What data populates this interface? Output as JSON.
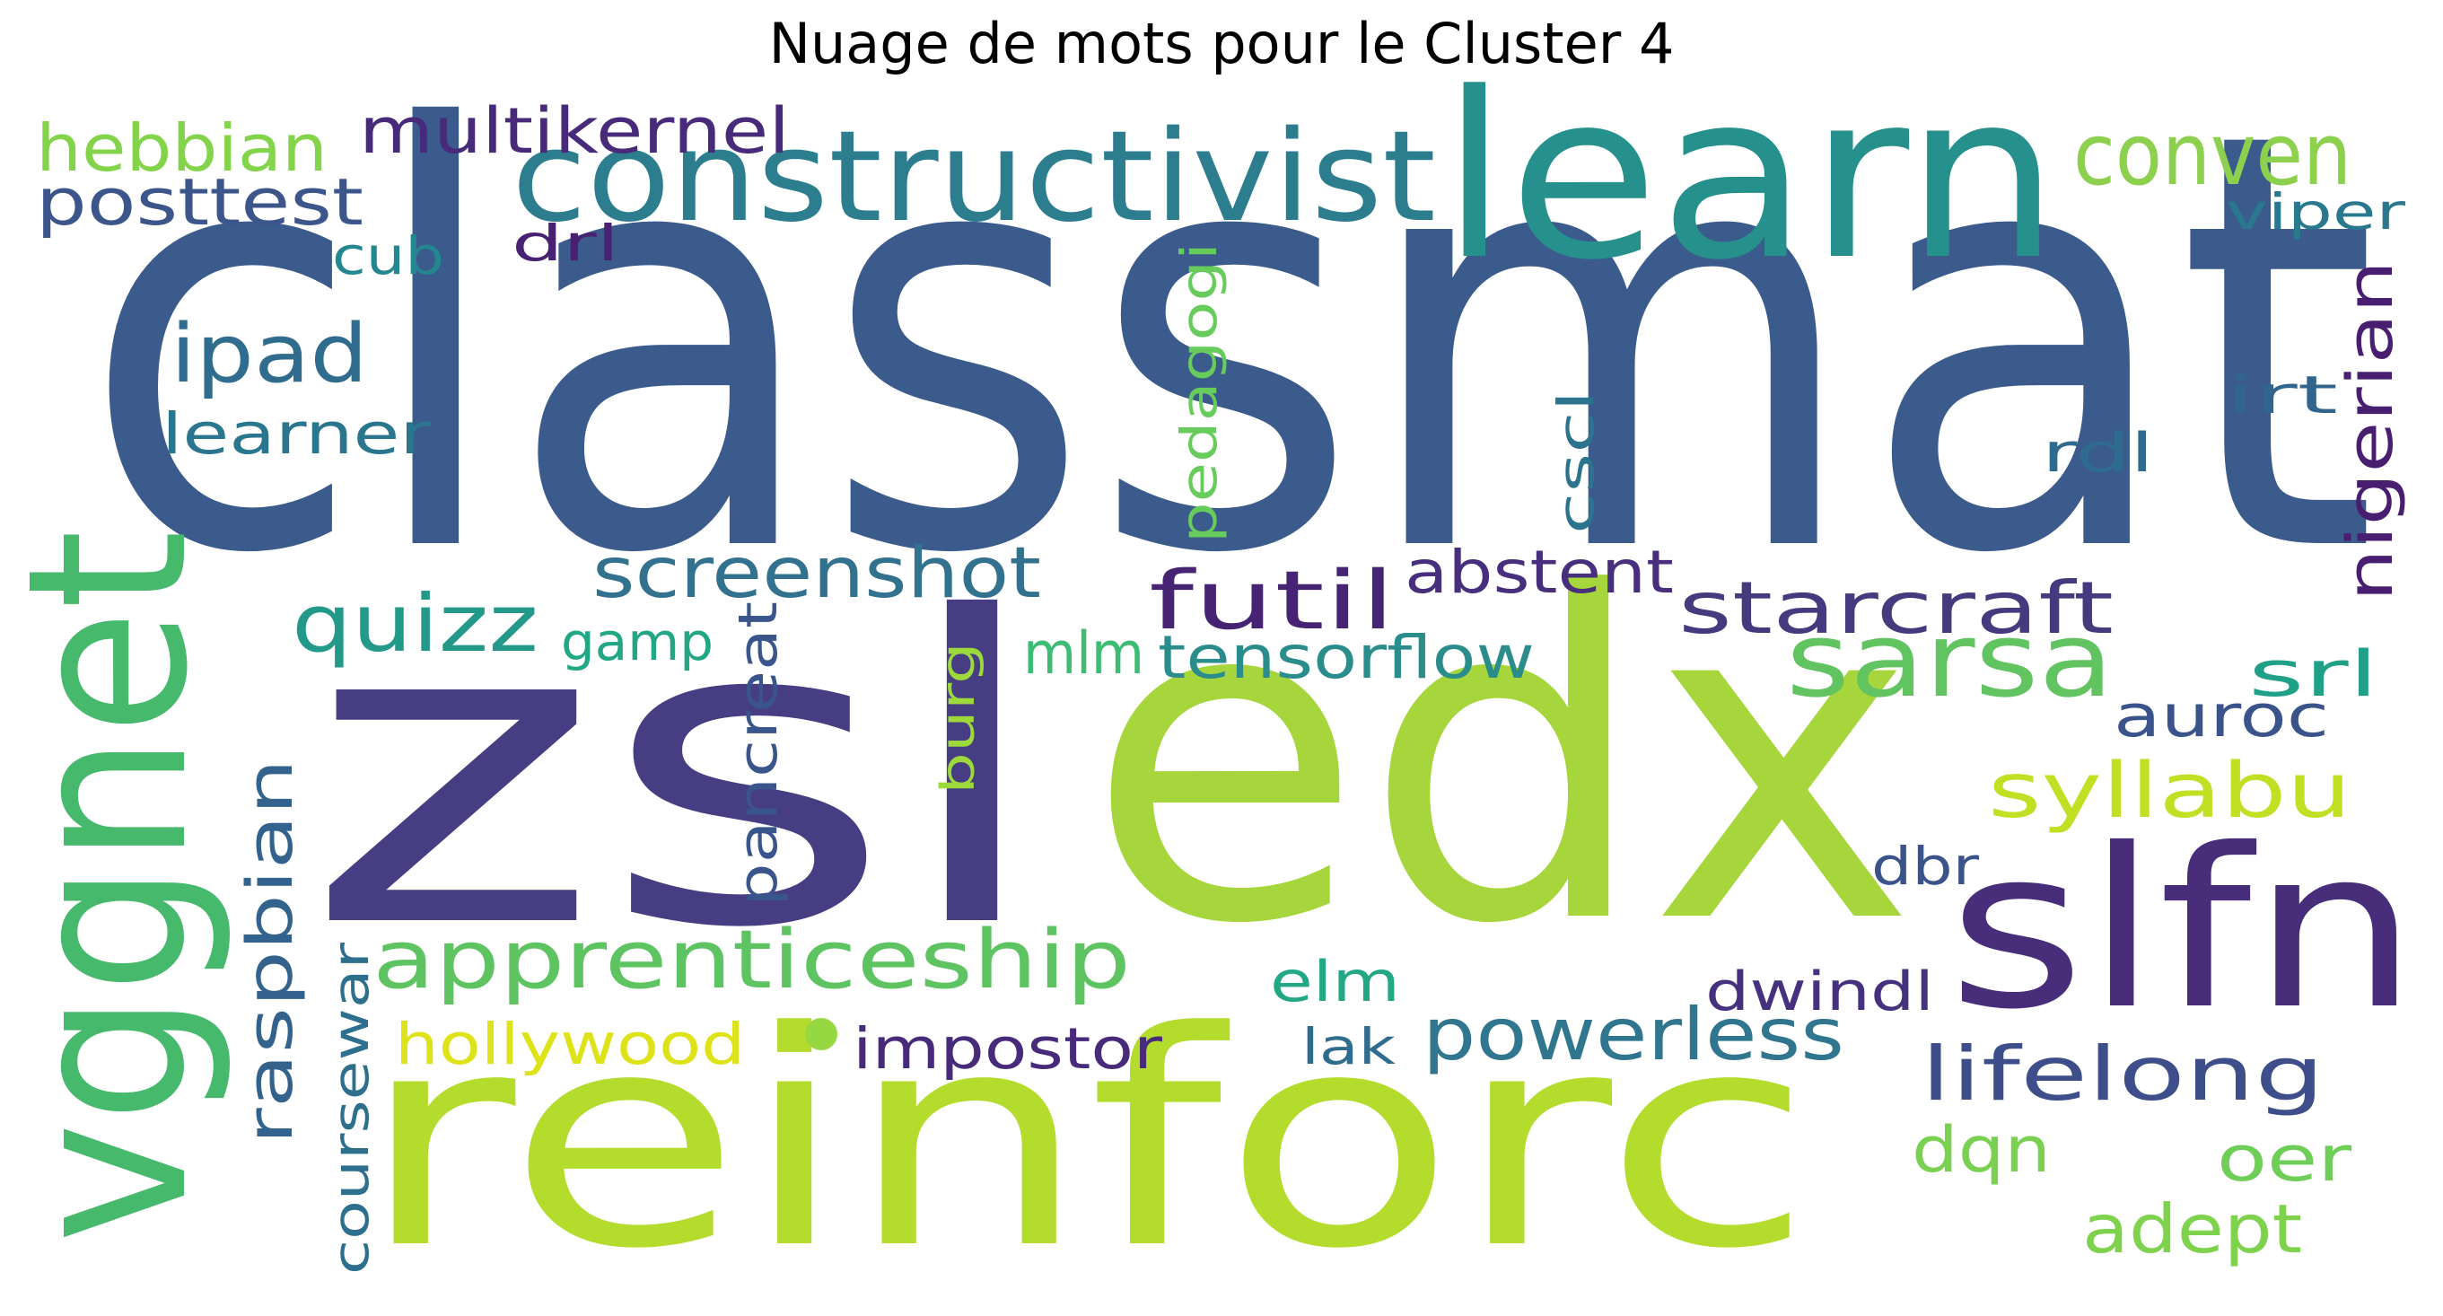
{
  "title": "Nuage de mots pour le Cluster 4",
  "words": [
    {
      "text": "classmat",
      "color": "#3b5b8c"
    },
    {
      "text": "zsl",
      "color": "#463d82"
    },
    {
      "text": "edx",
      "color": "#a6d63c"
    },
    {
      "text": "reinforc",
      "color": "#b4dc2c"
    },
    {
      "text": "learn",
      "color": "#26918c"
    },
    {
      "text": "vggnet",
      "color": "#46b96c"
    },
    {
      "text": "slfn",
      "color": "#472d7a"
    },
    {
      "text": "constructivist",
      "color": "#2c7e8e"
    },
    {
      "text": "sarsa",
      "color": "#62c460"
    },
    {
      "text": "conven",
      "color": "#8cd04e"
    },
    {
      "text": "apprenticeship",
      "color": "#5ec462"
    },
    {
      "text": "starcraft",
      "color": "#463a7e"
    },
    {
      "text": "futil",
      "color": "#472374"
    },
    {
      "text": "screenshot",
      "color": "#33728e"
    },
    {
      "text": "quizz",
      "color": "#23998a"
    },
    {
      "text": "syllabu",
      "color": "#c2df23"
    },
    {
      "text": "ipad",
      "color": "#2f6c8e"
    },
    {
      "text": "powerless",
      "color": "#2f768e"
    },
    {
      "text": "lifelong",
      "color": "#3e4e8a"
    },
    {
      "text": "multikernel",
      "color": "#482a7a"
    },
    {
      "text": "hebbian",
      "color": "#84d44b"
    },
    {
      "text": "posttest",
      "color": "#3c568b"
    },
    {
      "text": "tensorflow",
      "color": "#2b8c8c"
    },
    {
      "text": "abstent",
      "color": "#472f7d"
    },
    {
      "text": "nigerian",
      "color": "#481f70"
    },
    {
      "text": "raspbian",
      "color": "#33638d"
    },
    {
      "text": "adept",
      "color": "#7fd24e"
    },
    {
      "text": "pancreat",
      "color": "#39558c"
    },
    {
      "text": "hollywood",
      "color": "#dde318"
    },
    {
      "text": "impostor",
      "color": "#472a7a"
    },
    {
      "text": "learner",
      "color": "#2a768e"
    },
    {
      "text": "pedagogi",
      "color": "#67cc5c"
    },
    {
      "text": "coursewar",
      "color": "#2e6f8e"
    },
    {
      "text": "auroc",
      "color": "#3a538b"
    },
    {
      "text": "srl",
      "color": "#1fa087"
    },
    {
      "text": "dqn",
      "color": "#7ad151"
    },
    {
      "text": "oer",
      "color": "#6ece58"
    },
    {
      "text": "dwindl",
      "color": "#46317e"
    },
    {
      "text": "elm",
      "color": "#22a884"
    },
    {
      "text": "viper",
      "color": "#2a788e"
    },
    {
      "text": "irt",
      "color": "#31658e"
    },
    {
      "text": "rdl",
      "color": "#2f6b8e"
    },
    {
      "text": "cscl",
      "color": "#2c738e"
    },
    {
      "text": "mlm",
      "color": "#3dbc74"
    },
    {
      "text": "gamp",
      "color": "#22a785"
    },
    {
      "text": "burg",
      "color": "#9dd93b"
    },
    {
      "text": "dbr",
      "color": "#3b528b"
    },
    {
      "text": "lak",
      "color": "#2f6c8e"
    },
    {
      "text": "drl",
      "color": "#482173"
    },
    {
      "text": "cub",
      "color": "#24868e"
    },
    {
      "text": "dot",
      "color": "#95d840"
    }
  ]
}
